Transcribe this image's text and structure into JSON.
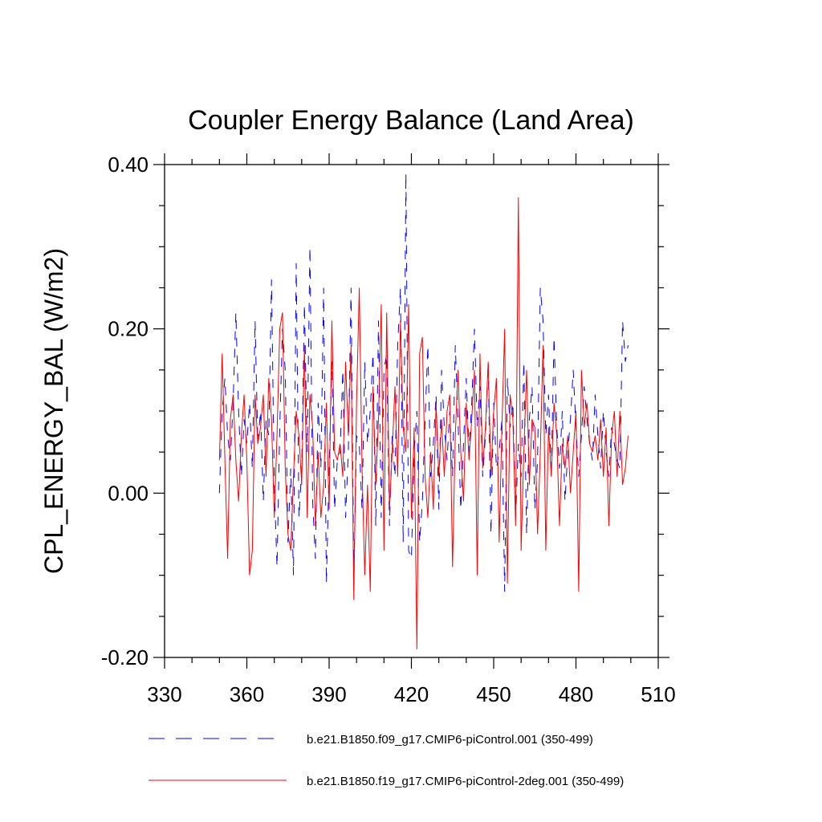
{
  "chart_data": {
    "type": "line",
    "title": "Coupler Energy Balance (Land Area)",
    "xlabel": "",
    "ylabel": "CPL_ENERGY_BAL  (W/m2)",
    "xlim": [
      330,
      510
    ],
    "ylim": [
      -0.2,
      0.4
    ],
    "xticks": [
      330,
      360,
      390,
      420,
      450,
      480,
      510
    ],
    "yticks": [
      -0.2,
      0.0,
      0.2,
      0.4
    ],
    "xtick_labels": [
      "330",
      "360",
      "390",
      "420",
      "450",
      "480",
      "510"
    ],
    "ytick_labels": [
      "-0.20",
      "0.00",
      "0.20",
      "0.40"
    ],
    "grid": false,
    "legend_position": "bottom",
    "series": [
      {
        "name": "b.e21.B1850.f09_g17.CMIP6-piControl.001 (350-499)",
        "color": "#0000ff",
        "dash": "dashed",
        "x_start": 350,
        "x_step": 1,
        "values": [
          0.0,
          0.1,
          0.14,
          0.07,
          0.04,
          0.11,
          0.22,
          0.1,
          0.02,
          0.09,
          0.06,
          0.11,
          0.03,
          0.21,
          0.06,
          0.1,
          -0.01,
          0.09,
          0.07,
          0.26,
          0.01,
          -0.09,
          0.08,
          0.2,
          0.15,
          -0.06,
          0.03,
          -0.1,
          0.28,
          -0.03,
          0.03,
          0.23,
          0.05,
          0.3,
          -0.01,
          -0.08,
          0.11,
          0.03,
          0.25,
          -0.11,
          0.03,
          0.16,
          -0.02,
          0.04,
          0.05,
          0.15,
          -0.03,
          0.05,
          0.25,
          -0.1,
          0.07,
          0.06,
          -0.02,
          0.16,
          0.06,
          0.1,
          0.17,
          -0.04,
          0.21,
          -0.03,
          0.15,
          0.17,
          -0.04,
          0.07,
          0.02,
          0.18,
          0.25,
          -0.06,
          0.39,
          -0.07,
          -0.08,
          0.05,
          0.1,
          -0.06,
          -0.01,
          0.09,
          0.18,
          0.02,
          0.06,
          0.12,
          -0.02,
          0.15,
          0.08,
          0.04,
          0.1,
          0.02,
          0.18,
          0.09,
          -0.02,
          0.06,
          0.14,
          0.05,
          0.11,
          0.2,
          0.08,
          0.13,
          0.02,
          0.07,
          0.16,
          -0.05,
          0.11,
          0.03,
          0.05,
          0.09,
          -0.12,
          0.14,
          0.08,
          0.11,
          -0.03,
          0.06,
          0.02,
          0.16,
          -0.05,
          0.09,
          0.13,
          -0.02,
          0.04,
          0.25,
          0.21,
          0.07,
          0.12,
          0.02,
          0.19,
          0.08,
          0.03,
          0.1,
          -0.01,
          0.05,
          0.09,
          0.15,
          0.08,
          0.02,
          0.07,
          0.13,
          0.09,
          0.06,
          0.04,
          0.12,
          0.07,
          0.03,
          0.1,
          0.05,
          0.02,
          0.08,
          0.06,
          0.04,
          0.03,
          0.21,
          0.16,
          0.18
        ]
      },
      {
        "name": "b.e21.B1850.f19_g17.CMIP6-piControl-2deg.001 (350-499)",
        "color": "#ff0000",
        "dash": "solid",
        "x_start": 350,
        "x_step": 1,
        "values": [
          0.04,
          0.17,
          0.04,
          -0.08,
          0.09,
          0.12,
          0.04,
          -0.01,
          0.07,
          0.12,
          0.04,
          -0.1,
          -0.07,
          0.12,
          0.06,
          0.08,
          0.12,
          0.02,
          0.14,
          0.09,
          -0.03,
          0.07,
          0.2,
          0.22,
          0.03,
          -0.05,
          -0.07,
          0.02,
          0.1,
          0.07,
          0.01,
          0.18,
          -0.03,
          0.12,
          0.08,
          -0.04,
          0.05,
          -0.03,
          0.01,
          0.11,
          -0.02,
          0.21,
          0.05,
          0.04,
          0.06,
          0.02,
          0.16,
          0.07,
          0.18,
          -0.13,
          0.11,
          0.25,
          0.03,
          -0.1,
          0.01,
          -0.12,
          0.13,
          0.01,
          0.09,
          0.23,
          -0.07,
          0.22,
          -0.02,
          0.05,
          0.13,
          0.02,
          0.21,
          0.08,
          0.05,
          0.23,
          -0.03,
          0.08,
          -0.19,
          0.17,
          0.19,
          0.02,
          -0.03,
          0.05,
          -0.02,
          0.11,
          0.02,
          0.09,
          0.02,
          0.1,
          0.12,
          -0.09,
          0.07,
          0.15,
          0.05,
          -0.01,
          0.11,
          0.04,
          0.09,
          0.15,
          -0.1,
          0.17,
          0.03,
          0.08,
          0.16,
          0.02,
          0.1,
          0.14,
          -0.06,
          0.08,
          0.2,
          -0.11,
          0.12,
          0.09,
          -0.04,
          0.36,
          -0.07,
          0.05,
          0.15,
          0.01,
          0.09,
          0.08,
          -0.05,
          0.05,
          0.18,
          -0.07,
          0.08,
          0.02,
          0.11,
          0.07,
          -0.04,
          0.06,
          0.03,
          0.07,
          0.0,
          0.05,
          0.1,
          -0.12,
          0.15,
          0.08,
          0.11,
          0.06,
          0.05,
          0.07,
          0.04,
          0.09,
          0.02,
          0.08,
          -0.04,
          0.07,
          0.1,
          0.02,
          0.1,
          0.01,
          0.03,
          0.07
        ]
      }
    ]
  }
}
